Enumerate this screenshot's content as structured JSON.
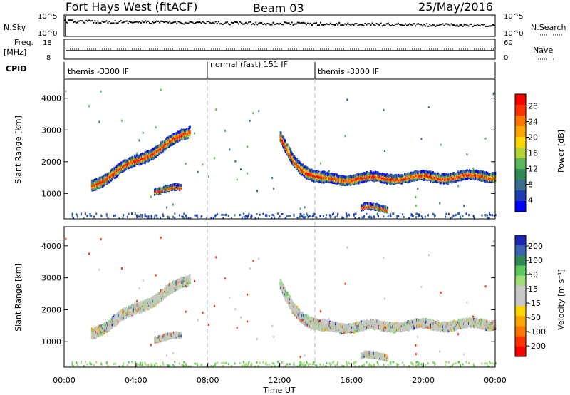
{
  "header": {
    "station": "Fort Hays West (fitACF)",
    "beam": "Beam 03",
    "date": "25/May/2016"
  },
  "top_panels": {
    "nsky_label": "N.Sky",
    "nsky_ticks": [
      "10^5",
      "10^0"
    ],
    "nsearch_label": "N.Search",
    "nsearch_ticks": [
      "10^5",
      "10^0"
    ],
    "freq_label": "Freq.",
    "freq_unit": "[MHz]",
    "freq_ticks": [
      "18",
      "8"
    ],
    "nave_label": "Nave",
    "nave_ticks": [
      "60",
      "0"
    ],
    "cpid_label": "CPID",
    "cpid_segments": [
      {
        "label": "themis -3300 IF",
        "start_hour": 0,
        "end_hour": 8
      },
      {
        "label": "normal (fast) 151 IF",
        "start_hour": 8,
        "end_hour": 14
      },
      {
        "label": "themis -3300 IF",
        "start_hour": 14,
        "end_hour": 24
      }
    ]
  },
  "chart_data": [
    {
      "type": "heatmap",
      "name": "power",
      "ylabel": "Slant Range [km]",
      "yticks": [
        1000,
        2000,
        3000,
        4000
      ],
      "ylim": [
        200,
        4600
      ],
      "xlim": [
        0,
        24
      ],
      "colorbar_label": "Power [dB]",
      "colorbar_ticks": [
        "28",
        "24",
        "20",
        "16",
        "12",
        "8",
        "4"
      ],
      "colorbar_colors": [
        "#ff0000",
        "#ff3300",
        "#ff7700",
        "#ffa500",
        "#ffd400",
        "#b5d334",
        "#5cb85c",
        "#2e8b57",
        "#3c6e8f",
        "#1e3cb4",
        "#0000ff"
      ],
      "echo_bands": [
        {
          "x_start": 1.5,
          "x_end": 7.0,
          "range_start": 1300,
          "range_end": 3000,
          "width_km": 260
        },
        {
          "x_start": 12.0,
          "x_end": 14.5,
          "range_start": 2800,
          "range_end": 1500,
          "width_km": 280
        },
        {
          "x_start": 14.5,
          "x_end": 24.0,
          "range_start": 1500,
          "range_end": 1600,
          "width_km": 220
        },
        {
          "x_start": 5.0,
          "x_end": 6.5,
          "range_start": 1150,
          "range_end": 1200,
          "width_km": 120
        },
        {
          "x_start": 16.5,
          "x_end": 18.0,
          "range_start": 600,
          "range_end": 550,
          "width_km": 130
        }
      ]
    },
    {
      "type": "heatmap",
      "name": "velocity",
      "ylabel": "Slant Range [km]",
      "yticks": [
        1000,
        2000,
        3000,
        4000
      ],
      "ylim": [
        200,
        4600
      ],
      "xlim": [
        0,
        24
      ],
      "colorbar_label": "Velocity [m s⁻¹]",
      "colorbar_ticks": [
        "200",
        "100",
        "50",
        "15",
        "-15",
        "-50",
        "-100",
        "-200"
      ],
      "colorbar_colors": [
        "#1e28b4",
        "#3c64b4",
        "#2e8b57",
        "#5cc85c",
        "#a0dc78",
        "#c8c8c8",
        "#c8c8c8",
        "#ffd400",
        "#ffa500",
        "#ff7700",
        "#ff3300",
        "#ff0000"
      ],
      "xticks": [
        "00:00",
        "04:00",
        "08:00",
        "12:00",
        "16:00",
        "20:00",
        "00:00"
      ],
      "xlabel": "Time UT"
    }
  ]
}
